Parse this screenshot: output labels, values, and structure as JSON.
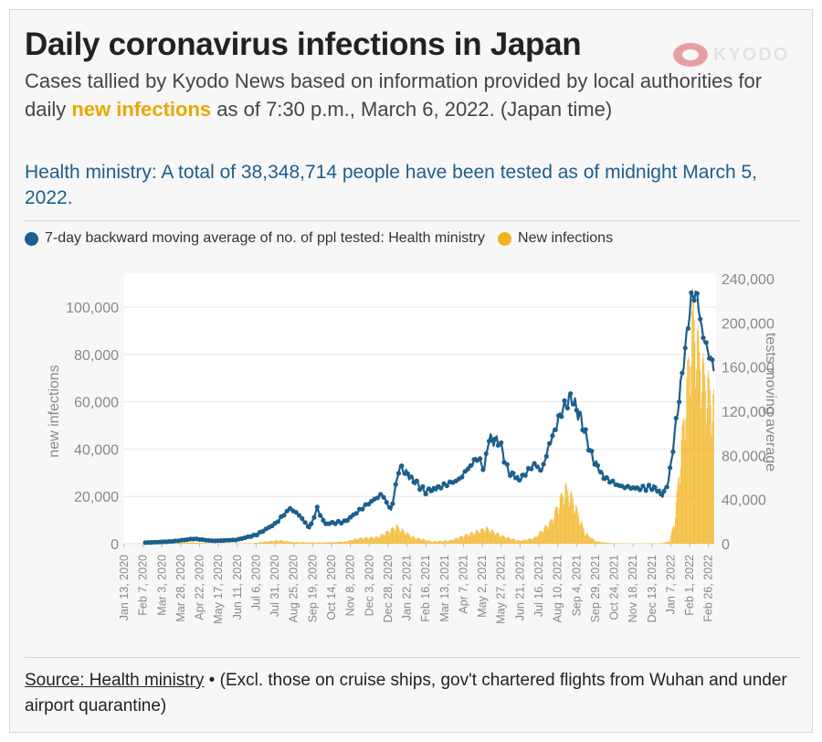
{
  "title": "Daily coronavirus infections in Japan",
  "logo_text": "KYODO",
  "subtitle": {
    "part1": "Cases tallied by Kyodo News based on information provided by local authorities for daily ",
    "highlight": "new infections",
    "part2": " as of 7:30 p.m., March 6, 2022. (Japan time)"
  },
  "note": "Health ministry: A total of 38,348,714 people have been tested as of midnight March 5, 2022.",
  "footer": {
    "source": "Source: Health ministry",
    "separator": " • ",
    "text": "(Excl. those on cruise ships, gov't chartered flights from Wuhan and under airport quarantine)"
  },
  "colors": {
    "tested": "#1c5f8c",
    "infections": "#f2b21b",
    "grid": "#e6e6e6",
    "axis_text": "#888888"
  },
  "chart_data": {
    "type": "bar+line",
    "legend_position": "top-left",
    "grid": true,
    "x_tick_labels": [
      "Jan 13, 2020",
      "Feb 7, 2020",
      "Mar 3, 2020",
      "Mar 28, 2020",
      "Apr 22, 2020",
      "May 17, 2020",
      "Jun 11, 2020",
      "Jul 6, 2020",
      "Jul 31, 2020",
      "Aug 25, 2020",
      "Sep 19, 2020",
      "Oct 14, 2020",
      "Nov 8, 2020",
      "Dec 3, 2020",
      "Dec 28, 2020",
      "Jan 22, 2021",
      "Feb 16, 2021",
      "Mar 13, 2021",
      "Apr 7, 2021",
      "May 2, 2021",
      "May 27, 2021",
      "Jun 21, 2021",
      "Jul 16, 2021",
      "Aug 10, 2021",
      "Sep 4, 2021",
      "Sep 29, 2021",
      "Oct 24, 2021",
      "Nov 18, 2021",
      "Dec 13, 2021",
      "Jan 7, 2022",
      "Feb 1, 2022",
      "Feb 26, 2022"
    ],
    "y_left": {
      "label": "new infections",
      "range": [
        0,
        112000
      ],
      "ticks": [
        0,
        20000,
        40000,
        60000,
        80000,
        100000
      ],
      "tick_labels": [
        "0",
        "20,000",
        "40,000",
        "60,000",
        "80,000",
        "100,000"
      ]
    },
    "y_right": {
      "label": "tests moving average",
      "range": [
        0,
        240000
      ],
      "ticks": [
        0,
        40000,
        80000,
        120000,
        160000,
        200000,
        240000
      ],
      "tick_labels": [
        "0",
        "40,000",
        "80,000",
        "120,000",
        "160,000",
        "200,000",
        "240,000"
      ]
    },
    "series": [
      {
        "name": "New infections",
        "kind": "bar",
        "axis": "left",
        "note": "daily new infections, approximate envelope (date, value)",
        "points": [
          [
            "2020-01-13",
            0
          ],
          [
            "2020-03-28",
            400
          ],
          [
            "2020-04-12",
            600
          ],
          [
            "2020-05-10",
            50
          ],
          [
            "2020-06-30",
            200
          ],
          [
            "2020-07-25",
            1200
          ],
          [
            "2020-08-07",
            1500
          ],
          [
            "2020-08-25",
            700
          ],
          [
            "2020-09-30",
            500
          ],
          [
            "2020-10-31",
            900
          ],
          [
            "2020-11-20",
            2500
          ],
          [
            "2020-12-15",
            3000
          ],
          [
            "2021-01-08",
            7800
          ],
          [
            "2021-01-30",
            3000
          ],
          [
            "2021-02-25",
            1000
          ],
          [
            "2021-03-20",
            1500
          ],
          [
            "2021-04-15",
            4500
          ],
          [
            "2021-05-08",
            7000
          ],
          [
            "2021-05-28",
            3500
          ],
          [
            "2021-06-20",
            1400
          ],
          [
            "2021-07-10",
            2500
          ],
          [
            "2021-08-01",
            10000
          ],
          [
            "2021-08-20",
            25000
          ],
          [
            "2021-08-30",
            20000
          ],
          [
            "2021-09-15",
            5000
          ],
          [
            "2021-09-30",
            1000
          ],
          [
            "2021-10-20",
            250
          ],
          [
            "2021-11-15",
            100
          ],
          [
            "2021-12-25",
            200
          ],
          [
            "2022-01-05",
            1000
          ],
          [
            "2022-01-12",
            10000
          ],
          [
            "2022-01-20",
            40000
          ],
          [
            "2022-02-01",
            85000
          ],
          [
            "2022-02-05",
            103000
          ],
          [
            "2022-02-12",
            88000
          ],
          [
            "2022-02-20",
            75000
          ],
          [
            "2022-02-26",
            70000
          ],
          [
            "2022-03-05",
            62000
          ]
        ]
      },
      {
        "name": "7-day backward moving average of no. of ppl tested: Health ministry",
        "kind": "line",
        "axis": "right",
        "note": "approximate values (date, value)",
        "points": [
          [
            "2020-02-10",
            1000
          ],
          [
            "2020-03-15",
            2000
          ],
          [
            "2020-04-15",
            4500
          ],
          [
            "2020-05-10",
            2500
          ],
          [
            "2020-06-10",
            3500
          ],
          [
            "2020-07-06",
            8000
          ],
          [
            "2020-07-31",
            18000
          ],
          [
            "2020-08-20",
            32000
          ],
          [
            "2020-09-01",
            26000
          ],
          [
            "2020-09-15",
            14000
          ],
          [
            "2020-09-25",
            32000
          ],
          [
            "2020-10-05",
            18000
          ],
          [
            "2020-11-01",
            20000
          ],
          [
            "2020-11-25",
            33000
          ],
          [
            "2020-12-20",
            45000
          ],
          [
            "2021-01-01",
            30000
          ],
          [
            "2021-01-12",
            70000
          ],
          [
            "2021-01-30",
            58000
          ],
          [
            "2021-02-15",
            47000
          ],
          [
            "2021-03-01",
            50000
          ],
          [
            "2021-04-01",
            58000
          ],
          [
            "2021-04-25",
            78000
          ],
          [
            "2021-05-05",
            68000
          ],
          [
            "2021-05-10",
            95000
          ],
          [
            "2021-05-25",
            92000
          ],
          [
            "2021-06-05",
            66000
          ],
          [
            "2021-06-20",
            58000
          ],
          [
            "2021-07-10",
            72000
          ],
          [
            "2021-07-20",
            66000
          ],
          [
            "2021-07-30",
            90000
          ],
          [
            "2021-08-15",
            120000
          ],
          [
            "2021-08-28",
            133000
          ],
          [
            "2021-09-10",
            112000
          ],
          [
            "2021-09-25",
            78000
          ],
          [
            "2021-10-10",
            60000
          ],
          [
            "2021-11-01",
            52000
          ],
          [
            "2021-11-25",
            50000
          ],
          [
            "2021-12-15",
            51000
          ],
          [
            "2021-12-28",
            44000
          ],
          [
            "2022-01-05",
            60000
          ],
          [
            "2022-01-15",
            115000
          ],
          [
            "2022-01-25",
            170000
          ],
          [
            "2022-02-03",
            222000
          ],
          [
            "2022-02-10",
            228000
          ],
          [
            "2022-02-18",
            190000
          ],
          [
            "2022-02-25",
            175000
          ],
          [
            "2022-03-05",
            160000
          ]
        ]
      }
    ]
  }
}
